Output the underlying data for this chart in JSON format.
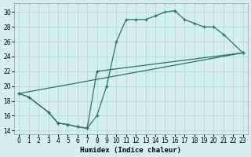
{
  "background_color": "#d5efef",
  "grid_color": "#aed4d4",
  "line_color": "#2d7068",
  "xlabel": "Humidex (Indice chaleur)",
  "xlim": [
    -0.5,
    23.5
  ],
  "ylim": [
    13.5,
    31.2
  ],
  "xticks": [
    0,
    1,
    2,
    3,
    4,
    5,
    6,
    7,
    8,
    9,
    10,
    11,
    12,
    13,
    14,
    15,
    16,
    17,
    18,
    19,
    20,
    21,
    22,
    23
  ],
  "yticks": [
    14,
    16,
    18,
    20,
    22,
    24,
    26,
    28,
    30
  ],
  "upper_curve_x": [
    0,
    1,
    3,
    4,
    5,
    6,
    7,
    8,
    9,
    10,
    11,
    12,
    13,
    14,
    15,
    16,
    17,
    18,
    19,
    20,
    21,
    23
  ],
  "upper_curve_y": [
    19,
    18.5,
    16.5,
    15,
    14.8,
    14.5,
    14.3,
    16,
    20,
    26,
    29,
    29,
    29,
    29.5,
    30,
    30.2,
    29,
    28.5,
    28,
    28,
    27,
    24.5
  ],
  "dip_curve_x": [
    0,
    1,
    3,
    4,
    5,
    6,
    7,
    8,
    23
  ],
  "dip_curve_y": [
    19,
    18.5,
    16.5,
    15,
    14.8,
    14.5,
    14.3,
    22,
    24.5
  ],
  "straight_line_x": [
    0,
    23
  ],
  "straight_line_y": [
    19,
    24.5
  ]
}
